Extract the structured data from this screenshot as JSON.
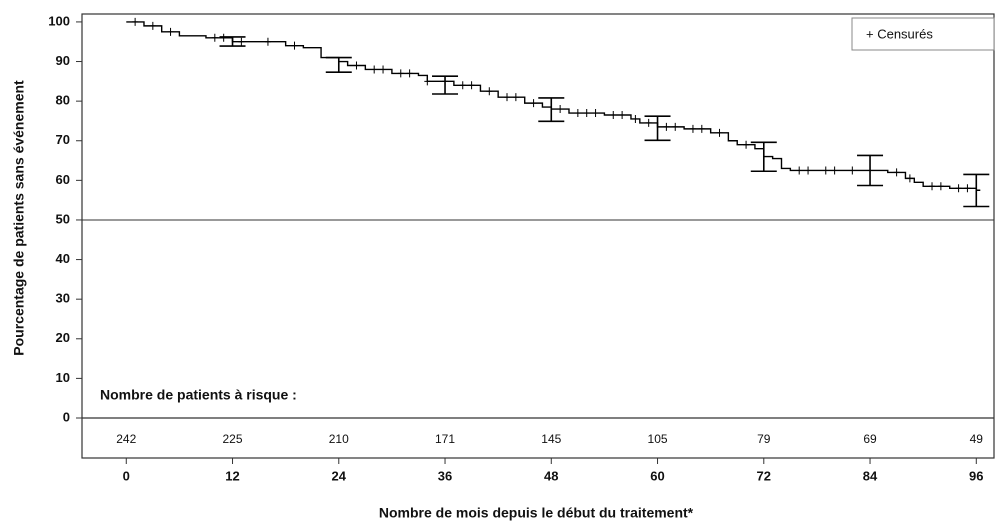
{
  "chart_data": {
    "type": "km",
    "ylabel": "Pourcentage de patients sans événement",
    "xlabel": "Nombre de mois depuis le début du traitement*",
    "legend_label": "+ Censurés",
    "x": [
      0,
      2,
      4,
      6,
      9,
      12,
      18,
      20,
      22,
      24,
      25,
      27,
      30,
      33,
      34,
      37,
      40,
      42,
      45,
      47,
      48,
      50,
      54,
      57,
      58,
      60,
      63,
      66,
      68,
      69,
      71,
      72,
      73,
      74,
      75,
      86,
      88,
      89,
      90,
      93,
      96
    ],
    "values": [
      100,
      99,
      97.5,
      96.5,
      96,
      95,
      94,
      93.5,
      91,
      90,
      89,
      88,
      87,
      86.5,
      85,
      84,
      82.5,
      81,
      79.5,
      78.5,
      78,
      77,
      76.5,
      75.5,
      74.5,
      73.5,
      73,
      72,
      70,
      69,
      68,
      66,
      65.5,
      63,
      62.5,
      62,
      60.5,
      59.5,
      58.5,
      58,
      57.5
    ],
    "censored_x": [
      1,
      3,
      5,
      10,
      11,
      13,
      16,
      19,
      26,
      28,
      29,
      31,
      32,
      34,
      36,
      38,
      39,
      41,
      43,
      44,
      46,
      49,
      51,
      52,
      53,
      55,
      56,
      57.5,
      59,
      61,
      62,
      64,
      65,
      67,
      70,
      76,
      77,
      79,
      80,
      82,
      84,
      87,
      88.5,
      91,
      92,
      94,
      95
    ],
    "censored_y": [
      100,
      99,
      97.5,
      96,
      96,
      95,
      95,
      94,
      89,
      88,
      88,
      87,
      87,
      85,
      85,
      84,
      84,
      82.5,
      81,
      81,
      79.5,
      78,
      77,
      77,
      77,
      76.5,
      76.5,
      75.5,
      74.5,
      73.5,
      73.5,
      73,
      73,
      72,
      69,
      62.5,
      62.5,
      62.5,
      62.5,
      62.5,
      62.5,
      62,
      60.5,
      58.5,
      58.5,
      58,
      58
    ],
    "ci_x": [
      12,
      24,
      36,
      48,
      60,
      72,
      84,
      96
    ],
    "ci_lower": [
      93.9,
      87.3,
      81.8,
      74.9,
      70.1,
      62.3,
      58.7,
      53.4
    ],
    "ci_upper": [
      96.2,
      91,
      86.3,
      80.8,
      76.2,
      69.6,
      66.3,
      61.5
    ],
    "reference_line": 50,
    "xlim": [
      -5,
      98
    ],
    "ylim": [
      0,
      102
    ],
    "xticks": [
      0,
      12,
      24,
      36,
      48,
      60,
      72,
      84,
      96
    ],
    "yticks": [
      0,
      10,
      20,
      30,
      40,
      50,
      60,
      70,
      80,
      90,
      100
    ],
    "risk_label": "Nombre de patients à risque :",
    "risk_counts": [
      242,
      225,
      210,
      171,
      145,
      105,
      79,
      69,
      49
    ],
    "color": "#000000"
  }
}
